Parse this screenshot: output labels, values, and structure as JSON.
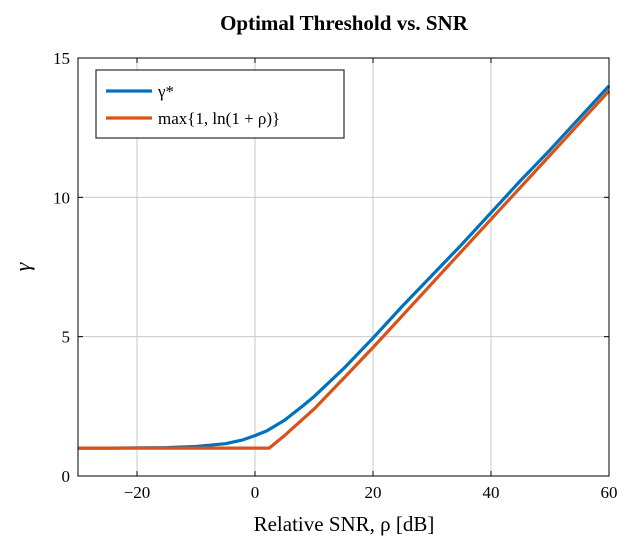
{
  "chart_data": {
    "type": "line",
    "title": "Optimal Threshold vs. SNR",
    "xlabel": "Relative SNR, ρ [dB]",
    "ylabel": "γ",
    "xlim": [
      -30,
      60
    ],
    "ylim": [
      0,
      15
    ],
    "xticks": [
      -20,
      0,
      20,
      40,
      60
    ],
    "xtick_labels": [
      "−20",
      "0",
      "20",
      "40",
      "60"
    ],
    "yticks": [
      0,
      5,
      10,
      15
    ],
    "ytick_labels": [
      "0",
      "5",
      "10",
      "15"
    ],
    "grid": true,
    "legend_position": "top-left",
    "series": [
      {
        "name": "γ*",
        "color": "#0072bd",
        "x": [
          -30,
          -25,
          -20,
          -15,
          -10,
          -5,
          -2,
          0,
          2,
          5,
          8,
          10,
          12,
          15,
          20,
          25,
          30,
          35,
          40,
          45,
          50,
          55,
          60
        ],
        "y": [
          1.0,
          1.0,
          1.01,
          1.02,
          1.06,
          1.16,
          1.3,
          1.45,
          1.62,
          2.0,
          2.5,
          2.85,
          3.25,
          3.85,
          4.95,
          6.1,
          7.2,
          8.3,
          9.45,
          10.6,
          11.7,
          12.85,
          14.0
        ]
      },
      {
        "name": "max{1, ln(1 + ρ)}",
        "color": "#d95319",
        "x": [
          -30,
          -20,
          -10,
          0,
          2,
          2.4,
          5,
          10,
          15,
          20,
          30,
          40,
          50,
          60
        ],
        "y": [
          1.0,
          1.0,
          1.0,
          1.0,
          1.0,
          1.0,
          1.45,
          2.4,
          3.5,
          4.61,
          6.91,
          9.21,
          11.51,
          13.82
        ]
      }
    ]
  }
}
